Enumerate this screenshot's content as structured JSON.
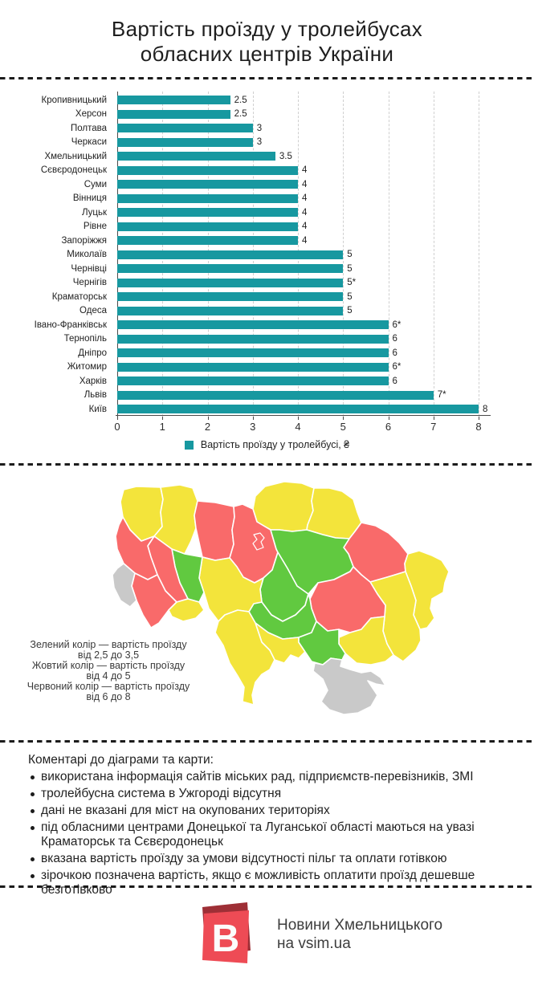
{
  "title": {
    "line1": "Вартість проїзду у тролейбусах",
    "line2": "обласних центрів України"
  },
  "chart_data": {
    "type": "bar",
    "orientation": "horizontal",
    "title": "Вартість проїзду у тролейбусах обласних центрів України",
    "categories": [
      "Кропивницький",
      "Херсон",
      "Полтава",
      "Черкаси",
      "Хмельницький",
      "Сєвєродонецьк",
      "Суми",
      "Вінниця",
      "Луцьк",
      "Рівне",
      "Запоріжжя",
      "Миколаїв",
      "Чернівці",
      "Чернігів",
      "Краматорськ",
      "Одеса",
      "Івано-Франківськ",
      "Тернопіль",
      "Дніпро",
      "Житомир",
      "Харків",
      "Львів",
      "Київ"
    ],
    "values": [
      2.5,
      2.5,
      3,
      3,
      3.5,
      4,
      4,
      4,
      4,
      4,
      4,
      5,
      5,
      5,
      5,
      5,
      6,
      6,
      6,
      6,
      6,
      7,
      8
    ],
    "value_labels": [
      "2.5",
      "2.5",
      "3",
      "3",
      "3.5",
      "4",
      "4",
      "4",
      "4",
      "4",
      "4",
      "5",
      "5",
      "5*",
      "5",
      "5",
      "6*",
      "6",
      "6",
      "6*",
      "6",
      "7*",
      "8"
    ],
    "x_ticks": [
      "0",
      "1",
      "2",
      "3",
      "4",
      "5",
      "6",
      "7",
      "8"
    ],
    "xlim": [
      0,
      8
    ],
    "grid": "vertical-dashed",
    "legend": "Вартість проїзду у тролейбусі, ₴",
    "legend_position": "bottom-center",
    "bar_color": "#1798A0"
  },
  "map": {
    "palette": {
      "green": "#61C940",
      "yellow": "#F3E43B",
      "red": "#F96A6A",
      "gray": "#C9C9C9"
    },
    "legend_lines": [
      "Зелений колір — вартість проїзду",
      "від 2,5 до 3,5",
      "Жовтий колір — вартість проїзду",
      "від 4 до 5",
      "Червоний колір — вартість проїзду",
      "від 6 до 8"
    ],
    "regions": {
      "volyn": "yellow",
      "rivne": "yellow",
      "zhytomyr": "red",
      "kyiv": "red",
      "kyiv-city": "red",
      "chernihiv": "yellow",
      "sumy": "yellow",
      "kharkiv": "red",
      "luhansk": "yellow",
      "donetsk": "yellow",
      "dnipropetrovsk": "red",
      "zaporizhzhia": "yellow",
      "poltava": "green",
      "cherkasy": "green",
      "kirovohrad": "green",
      "kherson": "green",
      "mykolaiv": "yellow",
      "odesa": "yellow",
      "vinnytsia": "yellow",
      "khmelnytskyi": "green",
      "ternopil": "red",
      "lviv": "red",
      "ivano-frankivsk": "red",
      "chernivtsi": "yellow",
      "zakarpattia": "gray",
      "crimea": "gray"
    }
  },
  "comments": {
    "heading": "Коментарі до діаграми та карти:",
    "items": [
      "використана інформація сайтів міських рад, підприємств-перевізників, ЗМІ",
      "тролейбусна система в Ужгороді відсутня",
      "дані не вказані для міст на окупованих територіях",
      "під обласними центрами Донецької та Луганської області маються на увазі Краматорськ та Сєвєродонецьк",
      "вказана вартість проїзду за умови відсутності пільг та оплати готівкою",
      "зірочкою позначена вартість, якщо є можливість оплатити проїзд дешевше безготівково"
    ]
  },
  "footer": {
    "logo_letter": "В",
    "logo_front_color": "#EE4B55",
    "logo_back_color": "#9E2F36",
    "line1": "Новини Хмельницького",
    "line2": "на vsim.ua"
  }
}
